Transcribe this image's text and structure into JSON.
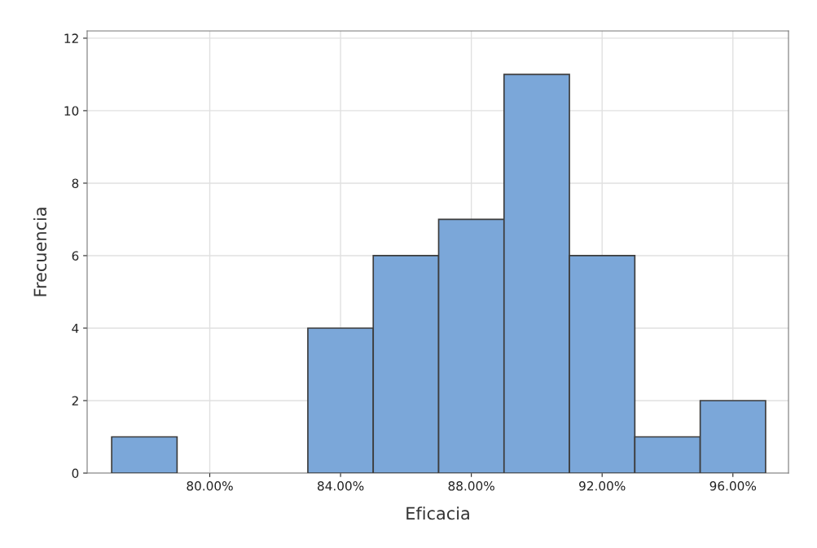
{
  "chart_data": {
    "type": "histogram",
    "xlabel": "Eficacia",
    "ylabel": "Frecuencia",
    "bins": [
      77,
      79,
      81,
      83,
      85,
      87,
      89,
      91,
      93,
      95,
      97
    ],
    "values": [
      1,
      0,
      0,
      4,
      6,
      7,
      11,
      6,
      1,
      2
    ],
    "color": "#7ba7d9",
    "xlim": [
      76.25,
      97.7
    ],
    "ylim": [
      0,
      12.2
    ],
    "xticks": [
      {
        "value": 80,
        "label": "80.00%"
      },
      {
        "value": 84,
        "label": "84.00%"
      },
      {
        "value": 88,
        "label": "88.00%"
      },
      {
        "value": 92,
        "label": "92.00%"
      },
      {
        "value": 96,
        "label": "96.00%"
      }
    ],
    "yticks": [
      0,
      2,
      4,
      6,
      8,
      10,
      12
    ],
    "grid": true
  }
}
